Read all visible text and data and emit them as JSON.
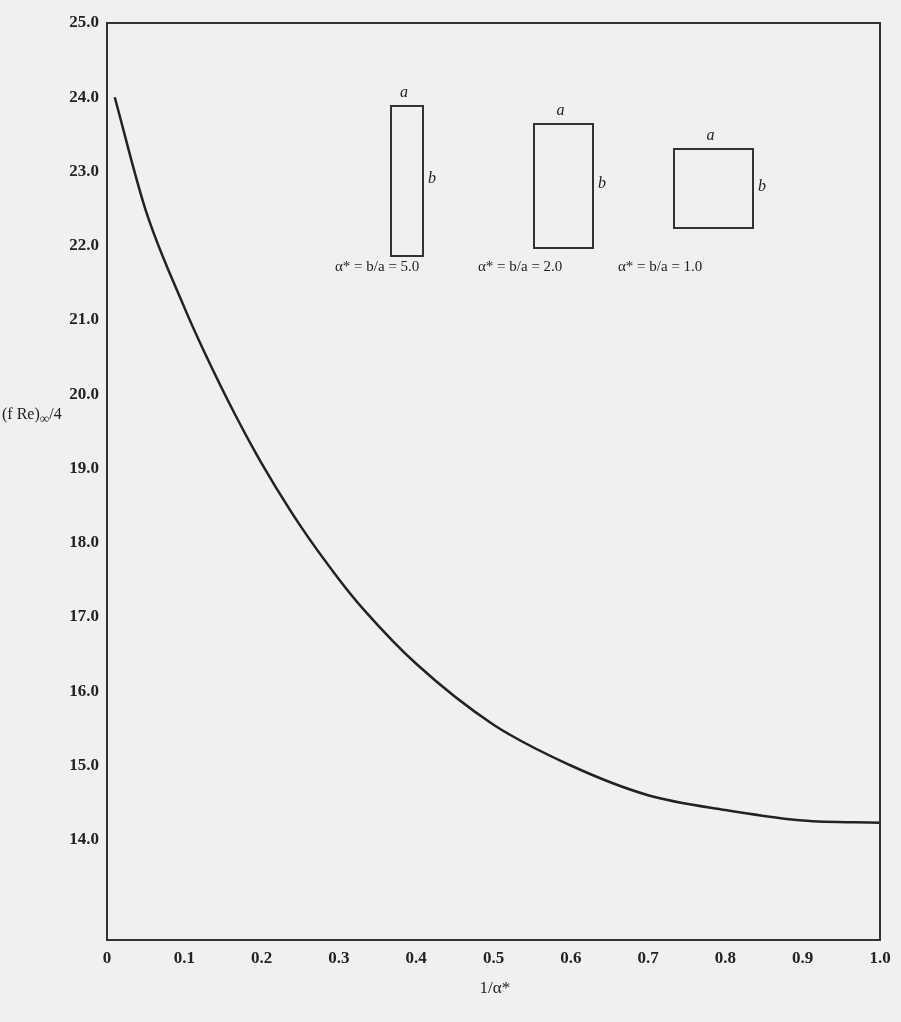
{
  "chart_data": {
    "type": "line",
    "xlabel": "1/α*",
    "ylabel": "(f Re)$_{∞}$/4",
    "x": [
      0.01,
      0.05,
      0.1,
      0.125,
      0.167,
      0.2,
      0.25,
      0.3,
      0.333,
      0.4,
      0.5,
      0.6,
      0.7,
      0.8,
      0.9,
      1.0
    ],
    "series": [
      {
        "color": "#222222",
        "values": [
          24.0,
          22.48,
          21.17,
          20.59,
          19.7,
          19.07,
          18.23,
          17.51,
          17.09,
          16.37,
          15.55,
          15.0,
          14.6,
          14.4,
          14.26,
          14.23
        ]
      }
    ],
    "xlim": [
      0,
      1
    ],
    "ylim": [
      12.65,
      25
    ],
    "xticks": [
      0,
      0.1,
      0.2,
      0.3,
      0.4,
      0.5,
      0.6,
      0.7,
      0.8,
      0.9,
      {
        "value": 1,
        "label": "1.0"
      }
    ],
    "yticks": [
      {
        "value": 14,
        "label": "14.0"
      },
      {
        "value": 15,
        "label": "15.0"
      },
      {
        "value": 16,
        "label": "16.0"
      },
      {
        "value": 17,
        "label": "17.0"
      },
      {
        "value": 18,
        "label": "18.0"
      },
      {
        "value": 19,
        "label": "19.0"
      },
      {
        "value": 20,
        "label": "20.0"
      },
      {
        "value": 21,
        "label": "21.0"
      },
      {
        "value": 22,
        "label": "22.0"
      },
      {
        "value": 23,
        "label": "23.0"
      },
      {
        "value": 24,
        "label": "24.0"
      },
      {
        "value": 25,
        "label": "25.0"
      }
    ],
    "annotations": [
      "a",
      "b",
      "α* = b/a = 5.0",
      "a",
      "b",
      "α* = b/a = 2.0",
      "a",
      "b",
      "α* = b/a = 1.0"
    ],
    "grid": false,
    "marker": "none",
    "line_style": "solid"
  }
}
